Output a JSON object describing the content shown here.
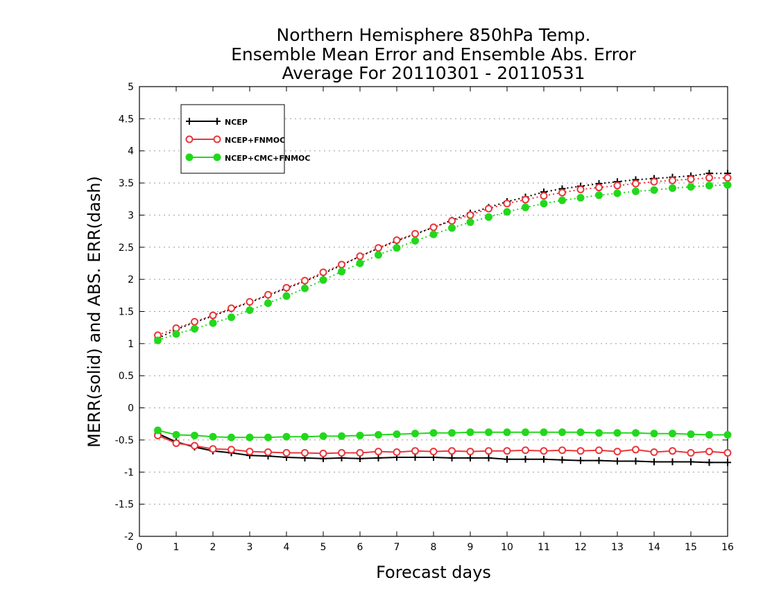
{
  "chart_data": {
    "type": "line",
    "title_lines": [
      "Northern Hemisphere 850hPa Temp.",
      "Ensemble Mean Error and Ensemble Abs. Error",
      "Average For 20110301 - 20110531"
    ],
    "xlabel": "Forecast days",
    "ylabel": "MERR(solid) and ABS. ERR(dash)",
    "xlim": [
      0,
      16
    ],
    "ylim": [
      -2,
      5
    ],
    "x_ticks": [
      "0",
      "1",
      "2",
      "3",
      "4",
      "5",
      "6",
      "7",
      "8",
      "9",
      "10",
      "11",
      "12",
      "13",
      "14",
      "15",
      "16"
    ],
    "y_ticks": [
      "5",
      "4.5",
      "4",
      "3.5",
      "3",
      "2.5",
      "2",
      "1.5",
      "1",
      "0.5",
      "0",
      "-0.5",
      "-1",
      "-1.5",
      "-2"
    ],
    "grid": "horizontal dotted",
    "legend_position": "top-left",
    "x": [
      0.5,
      1,
      1.5,
      2,
      2.5,
      3,
      3.5,
      4,
      4.5,
      5,
      5.5,
      6,
      6.5,
      7,
      7.5,
      8,
      8.5,
      9,
      9.5,
      10,
      10.5,
      11,
      11.5,
      12,
      12.5,
      13,
      13.5,
      14,
      14.5,
      15,
      15.5,
      16
    ],
    "series": [
      {
        "name": "NCEP",
        "color": "#000000",
        "marker": "plus",
        "abs_err": [
          1.08,
          1.22,
          1.33,
          1.43,
          1.54,
          1.64,
          1.75,
          1.86,
          1.97,
          2.09,
          2.22,
          2.36,
          2.48,
          2.6,
          2.7,
          2.81,
          2.92,
          3.03,
          3.12,
          3.21,
          3.28,
          3.36,
          3.41,
          3.45,
          3.49,
          3.52,
          3.55,
          3.57,
          3.59,
          3.61,
          3.65,
          3.65
        ],
        "mean_err": [
          -0.4,
          -0.53,
          -0.61,
          -0.67,
          -0.7,
          -0.74,
          -0.75,
          -0.77,
          -0.78,
          -0.79,
          -0.78,
          -0.79,
          -0.78,
          -0.77,
          -0.77,
          -0.77,
          -0.78,
          -0.78,
          -0.78,
          -0.8,
          -0.8,
          -0.8,
          -0.81,
          -0.82,
          -0.82,
          -0.83,
          -0.83,
          -0.84,
          -0.84,
          -0.84,
          -0.85,
          -0.85
        ]
      },
      {
        "name": "NCEP+FNMOC",
        "color": "#e8373b",
        "marker": "open-circle",
        "abs_err": [
          1.13,
          1.24,
          1.34,
          1.44,
          1.55,
          1.65,
          1.76,
          1.87,
          1.98,
          2.11,
          2.23,
          2.36,
          2.49,
          2.61,
          2.71,
          2.81,
          2.91,
          3.0,
          3.1,
          3.18,
          3.24,
          3.3,
          3.35,
          3.4,
          3.43,
          3.46,
          3.49,
          3.52,
          3.54,
          3.56,
          3.58,
          3.58
        ],
        "mean_err": [
          -0.43,
          -0.55,
          -0.59,
          -0.64,
          -0.65,
          -0.68,
          -0.69,
          -0.7,
          -0.7,
          -0.71,
          -0.7,
          -0.7,
          -0.68,
          -0.69,
          -0.67,
          -0.68,
          -0.67,
          -0.68,
          -0.67,
          -0.67,
          -0.66,
          -0.67,
          -0.66,
          -0.67,
          -0.66,
          -0.68,
          -0.65,
          -0.69,
          -0.67,
          -0.7,
          -0.68,
          -0.7
        ]
      },
      {
        "name": "NCEP+CMC+FNMOC",
        "color": "#22d81c",
        "marker": "filled-circle",
        "abs_err": [
          1.05,
          1.15,
          1.23,
          1.32,
          1.41,
          1.52,
          1.63,
          1.74,
          1.86,
          1.99,
          2.12,
          2.25,
          2.38,
          2.49,
          2.6,
          2.7,
          2.8,
          2.89,
          2.97,
          3.05,
          3.12,
          3.18,
          3.23,
          3.27,
          3.31,
          3.34,
          3.37,
          3.39,
          3.42,
          3.44,
          3.46,
          3.47
        ],
        "mean_err": [
          -0.35,
          -0.42,
          -0.43,
          -0.45,
          -0.46,
          -0.46,
          -0.46,
          -0.45,
          -0.45,
          -0.44,
          -0.44,
          -0.43,
          -0.42,
          -0.41,
          -0.4,
          -0.39,
          -0.39,
          -0.38,
          -0.38,
          -0.38,
          -0.38,
          -0.38,
          -0.38,
          -0.38,
          -0.39,
          -0.39,
          -0.39,
          -0.4,
          -0.4,
          -0.41,
          -0.42,
          -0.42
        ]
      }
    ]
  }
}
